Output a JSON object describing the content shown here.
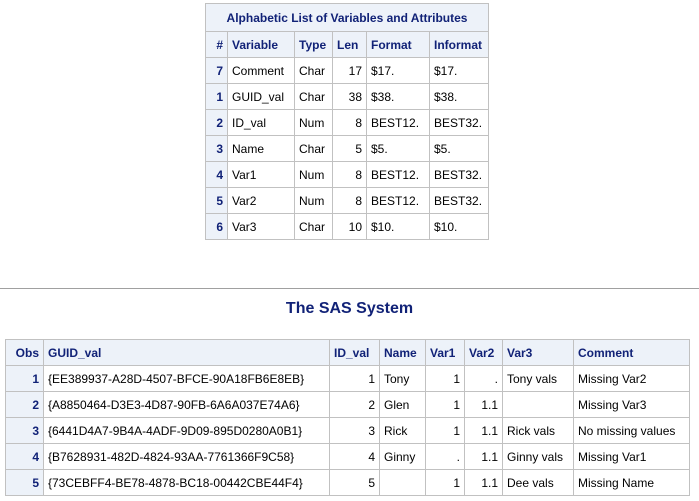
{
  "attributes_table": {
    "caption": "Alphabetic List of Variables and Attributes",
    "headers": [
      "#",
      "Variable",
      "Type",
      "Len",
      "Format",
      "Informat"
    ],
    "rows": [
      {
        "num": "7",
        "variable": "Comment",
        "type": "Char",
        "len": "17",
        "format": "$17.",
        "informat": "$17."
      },
      {
        "num": "1",
        "variable": "GUID_val",
        "type": "Char",
        "len": "38",
        "format": "$38.",
        "informat": "$38."
      },
      {
        "num": "2",
        "variable": "ID_val",
        "type": "Num",
        "len": "8",
        "format": "BEST12.",
        "informat": "BEST32."
      },
      {
        "num": "3",
        "variable": "Name",
        "type": "Char",
        "len": "5",
        "format": "$5.",
        "informat": "$5."
      },
      {
        "num": "4",
        "variable": "Var1",
        "type": "Num",
        "len": "8",
        "format": "BEST12.",
        "informat": "BEST32."
      },
      {
        "num": "5",
        "variable": "Var2",
        "type": "Num",
        "len": "8",
        "format": "BEST12.",
        "informat": "BEST32."
      },
      {
        "num": "6",
        "variable": "Var3",
        "type": "Char",
        "len": "10",
        "format": "$10.",
        "informat": "$10."
      }
    ]
  },
  "print_output": {
    "title": "The SAS System",
    "headers": [
      "Obs",
      "GUID_val",
      "ID_val",
      "Name",
      "Var1",
      "Var2",
      "Var3",
      "Comment"
    ],
    "rows": [
      {
        "obs": "1",
        "guid": "{EE389937-A28D-4507-BFCE-90A18FB6E8EB}",
        "id": "1",
        "name": "Tony",
        "var1": "1",
        "var2": ".",
        "var3": "Tony vals",
        "comment": "Missing Var2"
      },
      {
        "obs": "2",
        "guid": "{A8850464-D3E3-4D87-90FB-6A6A037E74A6}",
        "id": "2",
        "name": "Glen",
        "var1": "1",
        "var2": "1.1",
        "var3": "",
        "comment": "Missing Var3"
      },
      {
        "obs": "3",
        "guid": "{6441D4A7-9B4A-4ADF-9D09-895D0280A0B1}",
        "id": "3",
        "name": "Rick",
        "var1": "1",
        "var2": "1.1",
        "var3": "Rick vals",
        "comment": "No missing values"
      },
      {
        "obs": "4",
        "guid": "{B7628931-482D-4824-93AA-7761366F9C58}",
        "id": "4",
        "name": "Ginny",
        "var1": ".",
        "var2": "1.1",
        "var3": "Ginny vals",
        "comment": "Missing Var1"
      },
      {
        "obs": "5",
        "guid": "{73CEBFF4-BE78-4878-BC18-00442CBE44F4}",
        "id": "5",
        "name": "",
        "var1": "1",
        "var2": "1.1",
        "var3": "Dee vals",
        "comment": "Missing Name"
      }
    ]
  },
  "colors": {
    "header_bg": "#edf2f9",
    "header_text": "#112277",
    "grid": "#c1c1c1"
  }
}
